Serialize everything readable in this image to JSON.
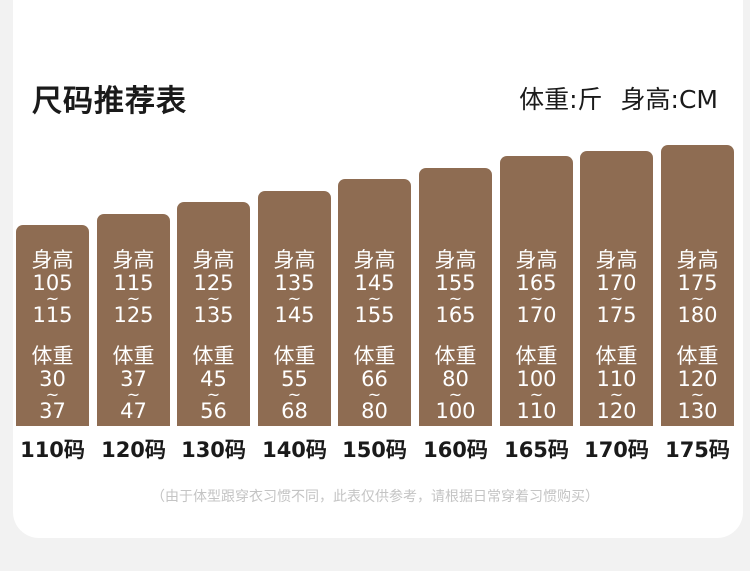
{
  "title": "尺码推荐表",
  "units": {
    "weight": "体重:斤",
    "height": "身高:CM"
  },
  "chart_data": {
    "type": "bar",
    "title": "尺码推荐表",
    "height_label": "身高",
    "weight_label": "体重",
    "separator": "~",
    "categories": [
      "110码",
      "120码",
      "130码",
      "140码",
      "150码",
      "160码",
      "165码",
      "170码",
      "175码"
    ],
    "series": [
      {
        "name": "身高",
        "values": [
          [
            105,
            115
          ],
          [
            115,
            125
          ],
          [
            125,
            135
          ],
          [
            135,
            145
          ],
          [
            145,
            155
          ],
          [
            155,
            165
          ],
          [
            165,
            170
          ],
          [
            170,
            175
          ],
          [
            175,
            180
          ]
        ]
      },
      {
        "name": "体重",
        "values": [
          [
            30,
            37
          ],
          [
            37,
            47
          ],
          [
            45,
            56
          ],
          [
            55,
            68
          ],
          [
            66,
            80
          ],
          [
            80,
            100
          ],
          [
            100,
            110
          ],
          [
            110,
            120
          ],
          [
            120,
            130
          ]
        ]
      }
    ]
  },
  "footnote": "（由于体型跟穿衣习惯不同，此表仅供参考，请根据日常穿着习惯购买）",
  "colors": {
    "bar": "#8e6c52",
    "background": "#f2f2f2",
    "card": "#ffffff",
    "text": "#1a1a1a",
    "footnote": "#c4c4c4"
  }
}
